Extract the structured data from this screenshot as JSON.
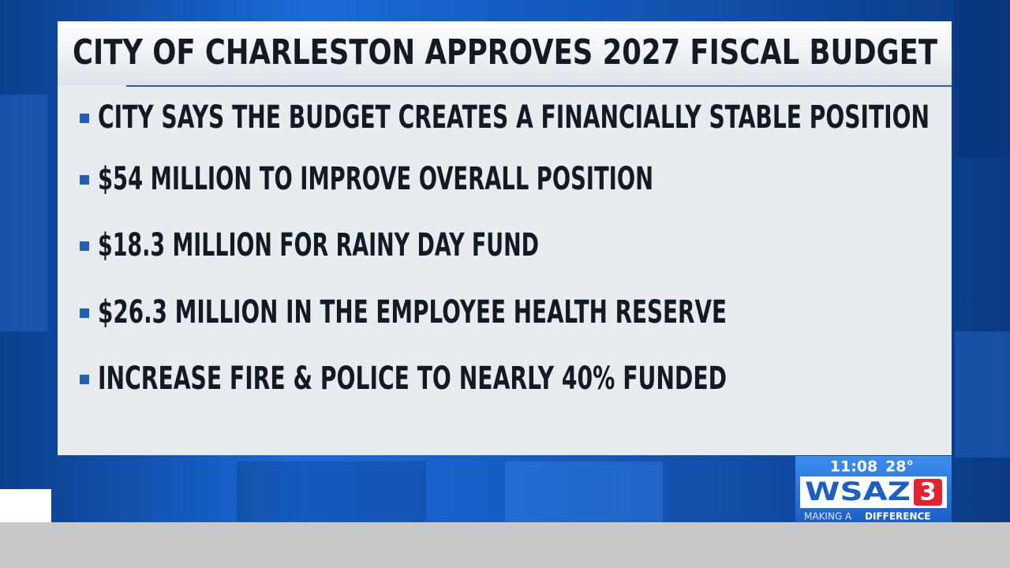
{
  "header": {
    "title": "CITY OF CHARLESTON APPROVES 2027 FISCAL BUDGET"
  },
  "bullets": [
    "CITY SAYS THE BUDGET CREATES A FINANCIALLY STABLE POSITION",
    "$54 MILLION TO IMPROVE OVERALL POSITION",
    "$18.3 MILLION FOR RAINY DAY FUND",
    "$26.3 MILLION IN THE EMPLOYEE HEALTH RESERVE",
    "INCREASE FIRE & POLICE TO NEARLY 40% FUNDED"
  ],
  "station_bug": {
    "time": "11:08",
    "temperature": "28°",
    "logo": "WSAZ",
    "channel": "3",
    "tagline": [
      "MAKING A",
      "DIFFERENCE"
    ]
  }
}
